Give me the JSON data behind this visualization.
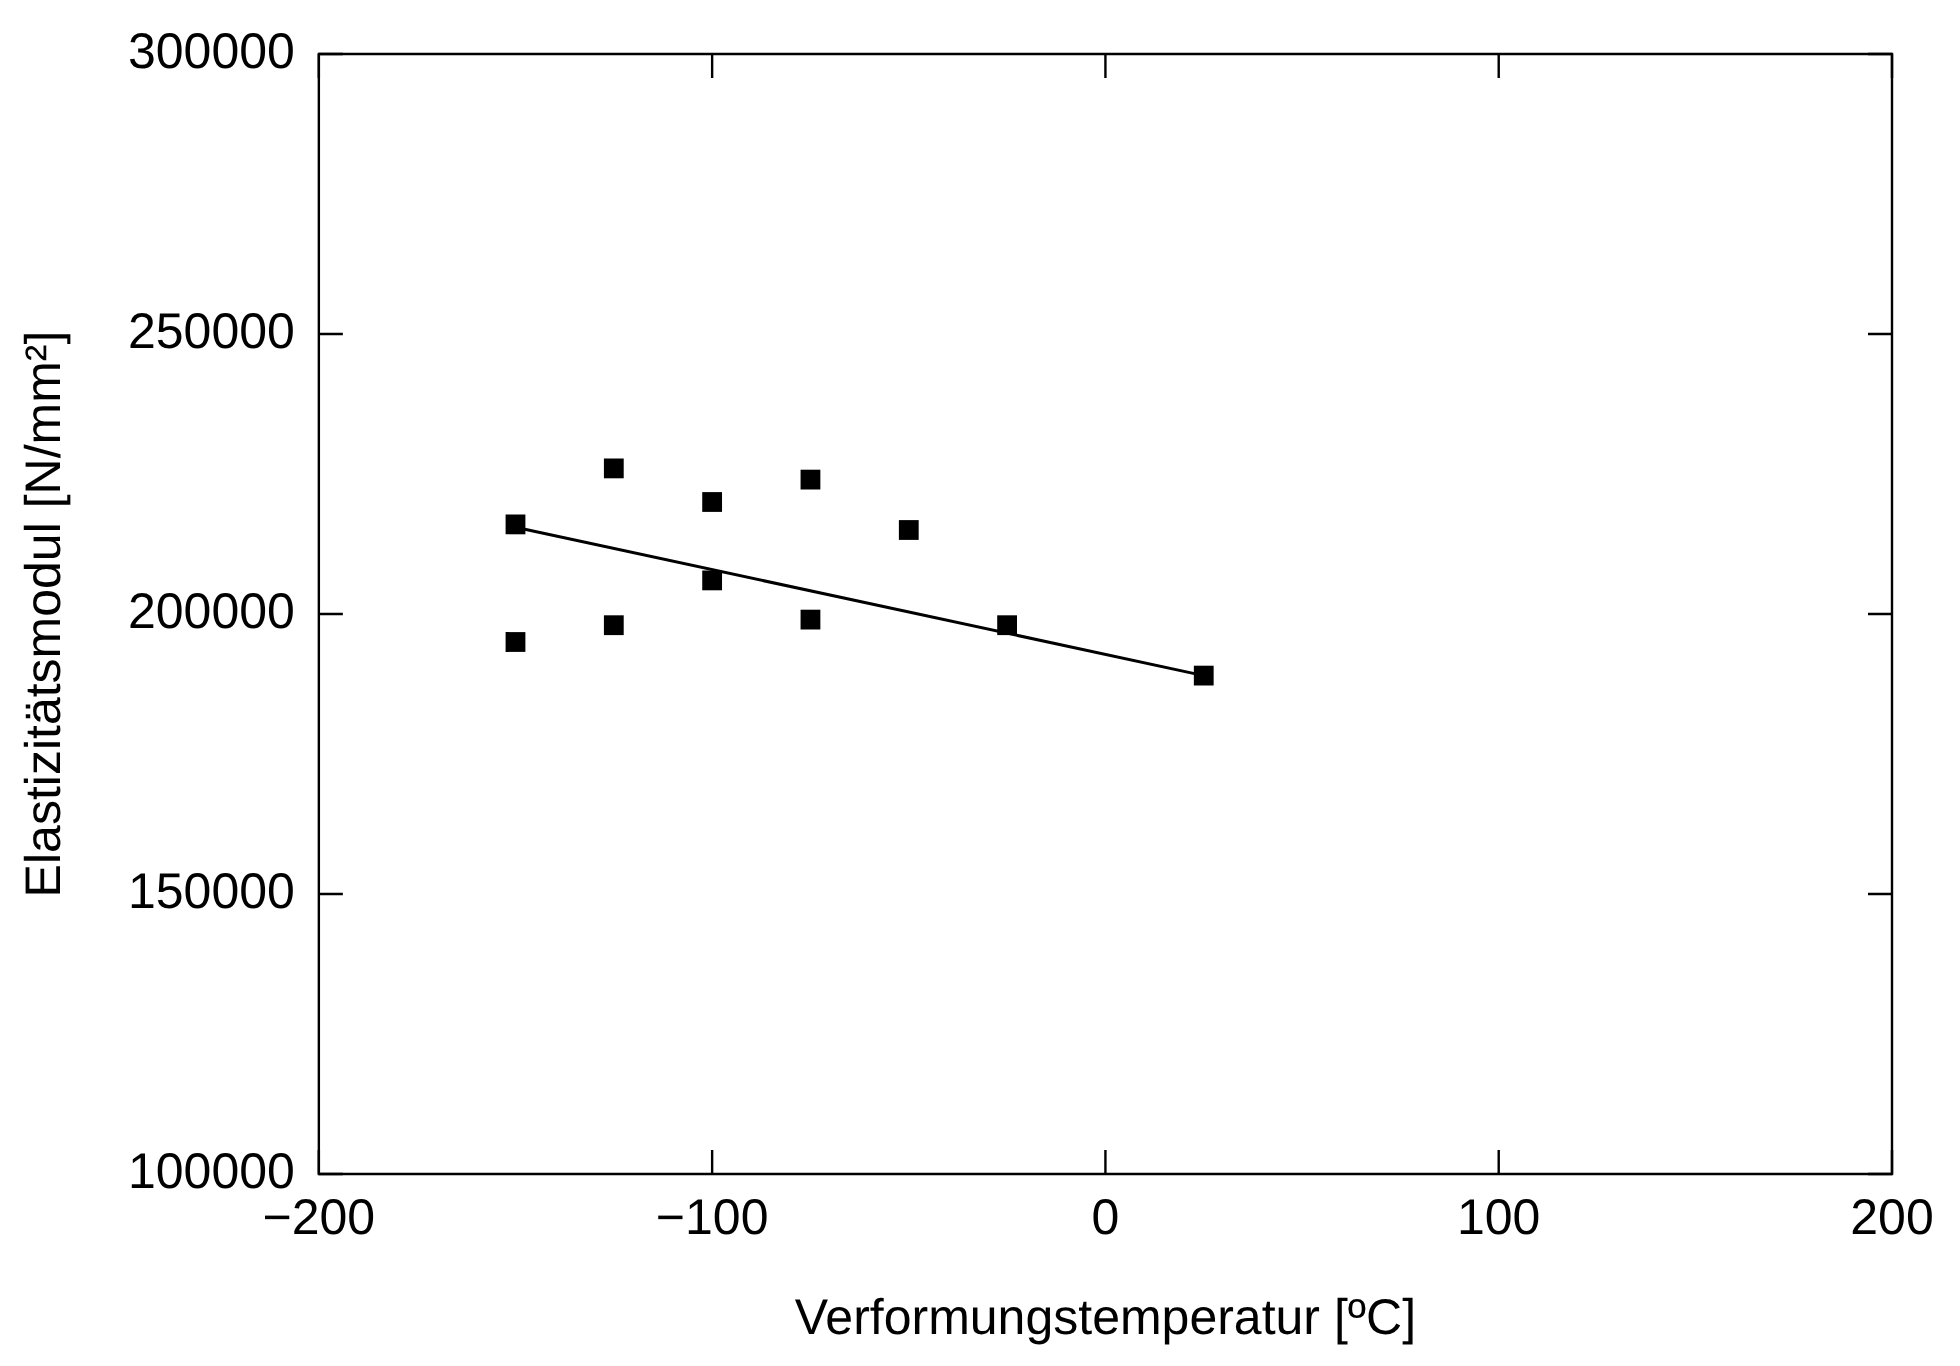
{
  "chart_data": {
    "type": "scatter",
    "xlabel": "Verformungstemperatur [ºC]",
    "ylabel": "Elastizitätsmodul [N/mm²]",
    "xlim": [
      -200,
      200
    ],
    "xticks": [
      -200,
      -100,
      0,
      100,
      200
    ],
    "ylim": [
      100000,
      300000
    ],
    "yticks": [
      100000,
      150000,
      200000,
      250000,
      300000
    ],
    "grid": false,
    "legend": false,
    "marker": "square",
    "series": [
      {
        "color": "#000000",
        "x": [
          -150,
          -150,
          -125,
          -125,
          -100,
          -100,
          -75,
          -75,
          -50,
          -25,
          25
        ],
        "values": [
          216000,
          195000,
          226000,
          198000,
          220000,
          206000,
          224000,
          199000,
          215000,
          198000,
          189000
        ]
      },
      {
        "type": "line",
        "color": "#000000",
        "marker": "none",
        "x": [
          -150,
          25
        ],
        "values": [
          215500,
          189000
        ]
      }
    ]
  }
}
